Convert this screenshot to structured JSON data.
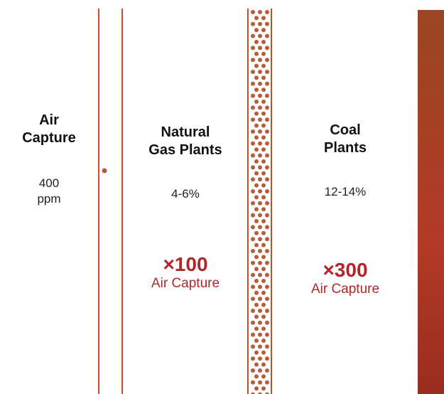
{
  "columns": [
    {
      "title_line1": "Air",
      "title_line2": "Capture",
      "concentration_line1": "400",
      "concentration_line2": "ppm"
    },
    {
      "title_line1": "Natural",
      "title_line2": "Gas Plants",
      "concentration": "4-6%",
      "multiplier": "×100",
      "multiplier_sub": "Air Capture"
    },
    {
      "title_line1": "Coal",
      "title_line2": "Plants",
      "concentration": "12-14%",
      "multiplier": "×300",
      "multiplier_sub": "Air Capture"
    }
  ],
  "colors": {
    "accent": "#b0262b",
    "line": "#b7542e",
    "dot": "#b85c3a",
    "gradient_top": "#9a4624",
    "gradient_mid": "#b23a26",
    "gradient_bottom": "#9a2d20"
  }
}
